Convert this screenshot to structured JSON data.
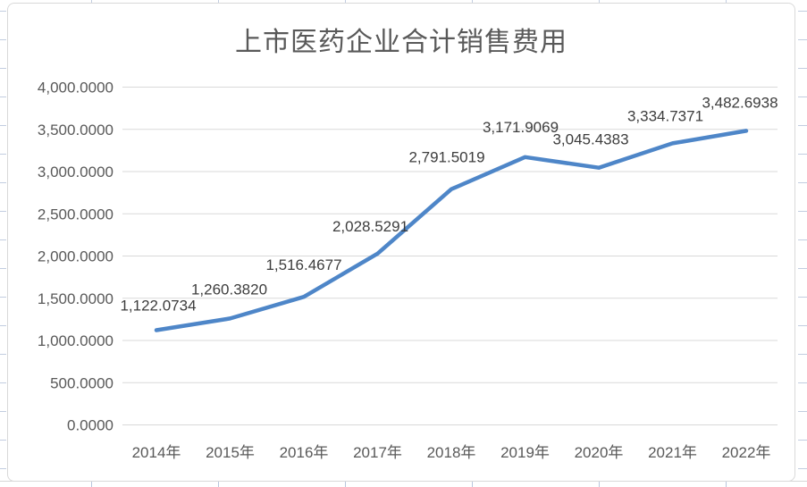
{
  "chart_data": {
    "type": "line",
    "title": "上市医药企业合计销售费用",
    "categories": [
      "2014年",
      "2015年",
      "2016年",
      "2017年",
      "2018年",
      "2019年",
      "2020年",
      "2021年",
      "2022年"
    ],
    "values": [
      1122.0734,
      1260.382,
      1516.4677,
      2028.5291,
      2791.5019,
      3171.9069,
      3045.4383,
      3334.7371,
      3482.6938
    ],
    "data_labels": [
      "1,122.0734",
      "1,260.3820",
      "1,516.4677",
      "2,028.5291",
      "2,791.5019",
      "3,171.9069",
      "3,045.4383",
      "3,334.7371",
      "3,482.6938"
    ],
    "xlabel": "",
    "ylabel": "",
    "ylim": [
      0,
      4000
    ],
    "y_axis": {
      "tick_values": [
        0,
        500,
        1000,
        1500,
        2000,
        2500,
        3000,
        3500,
        4000
      ],
      "tick_labels": [
        "0.0000",
        "500.0000",
        "1,000.0000",
        "1,500.0000",
        "2,000.0000",
        "2,500.0000",
        "3,000.0000",
        "3,500.0000",
        "4,000.0000"
      ]
    },
    "grid": true,
    "legend": "none",
    "colors": {
      "series_line": "#4e86c8",
      "gridline": "#d9d9d9",
      "axis_text": "#595959",
      "data_label_text": "#3d3d3d",
      "title_text": "#595959"
    }
  }
}
